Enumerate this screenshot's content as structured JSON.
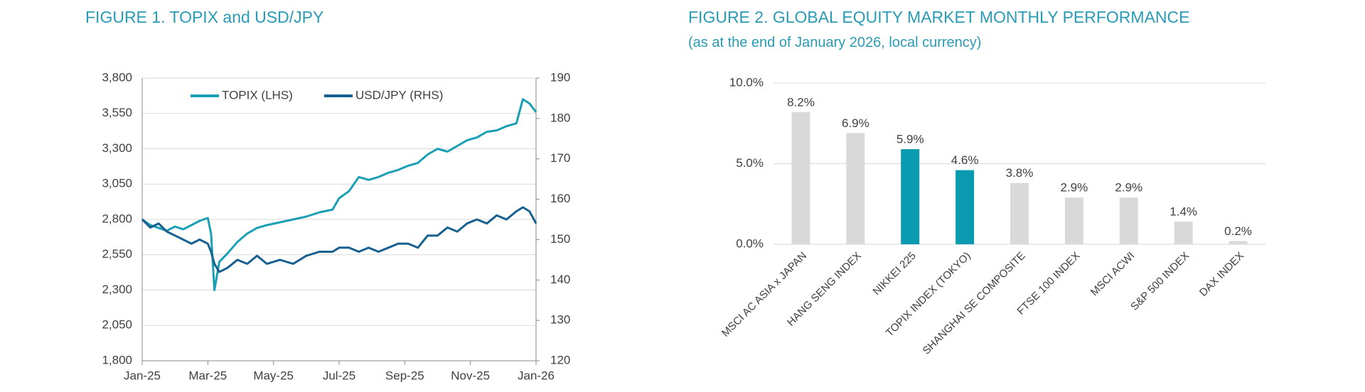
{
  "chart_data": [
    {
      "type": "line",
      "title": "FIGURE 1. TOPIX and USD/JPY",
      "x": [
        0,
        0.25,
        0.5,
        0.75,
        1,
        1.25,
        1.5,
        1.75,
        2.0,
        2.1,
        2.2,
        2.35,
        2.6,
        2.9,
        3.2,
        3.5,
        3.8,
        4.2,
        4.6,
        5,
        5.4,
        5.8,
        6.0,
        6.3,
        6.6,
        6.9,
        7.2,
        7.5,
        7.8,
        8.1,
        8.4,
        8.7,
        9.0,
        9.3,
        9.6,
        9.9,
        10.2,
        10.5,
        10.8,
        11.1,
        11.4,
        11.6,
        11.8,
        12.0
      ],
      "xlim": [
        0,
        12
      ],
      "xticks": [
        {
          "value": 0,
          "label": "Jan-25"
        },
        {
          "value": 2,
          "label": "Mar-25"
        },
        {
          "value": 4,
          "label": "May-25"
        },
        {
          "value": 6,
          "label": "Jul-25"
        },
        {
          "value": 8,
          "label": "Sep-25"
        },
        {
          "value": 10,
          "label": "Nov-25"
        },
        {
          "value": 12,
          "label": "Jan-26"
        }
      ],
      "ylim": [
        1800,
        3800
      ],
      "yticks": [
        {
          "value": 1800,
          "label": "1,800"
        },
        {
          "value": 2050,
          "label": "2,050"
        },
        {
          "value": 2300,
          "label": "2,300"
        },
        {
          "value": 2550,
          "label": "2,550"
        },
        {
          "value": 2800,
          "label": "2,800"
        },
        {
          "value": 3050,
          "label": "3,050"
        },
        {
          "value": 3300,
          "label": "3,300"
        },
        {
          "value": 3550,
          "label": "3,550"
        },
        {
          "value": 3800,
          "label": "3,800"
        }
      ],
      "y2lim": [
        120,
        190
      ],
      "y2ticks": [
        120,
        130,
        140,
        150,
        160,
        170,
        180,
        190
      ],
      "grid": true,
      "legend": "top",
      "series": [
        {
          "name": "TOPIX (LHS)",
          "color": "#1a9fb5",
          "values": [
            2800,
            2760,
            2740,
            2720,
            2750,
            2730,
            2760,
            2790,
            2810,
            2700,
            2300,
            2500,
            2560,
            2640,
            2700,
            2740,
            2760,
            2780,
            2800,
            2820,
            2850,
            2870,
            2950,
            3000,
            3100,
            3080,
            3100,
            3130,
            3150,
            3180,
            3200,
            3260,
            3300,
            3280,
            3320,
            3360,
            3380,
            3420,
            3430,
            3460,
            3480,
            3650,
            3620,
            3560
          ]
        },
        {
          "name": "USD/JPY (RHS)",
          "color": "#17608f",
          "axis": "y2",
          "values": [
            155,
            153,
            154,
            152,
            151,
            150,
            149,
            150,
            149,
            147,
            144,
            142,
            143,
            145,
            144,
            146,
            144,
            145,
            144,
            146,
            147,
            147,
            148,
            148,
            147,
            148,
            147,
            148,
            149,
            149,
            148,
            151,
            151,
            153,
            152,
            154,
            155,
            154,
            156,
            155,
            157,
            158,
            157,
            154
          ]
        }
      ]
    },
    {
      "type": "bar",
      "title": "FIGURE 2. GLOBAL EQUITY MARKET MONTHLY PERFORMANCE",
      "subtitle": "(as at the end of January 2026, local currency)",
      "categories": [
        "MSCI AC ASIA x JAPAN",
        "HANG SENG INDEX",
        "NIKKEI 225",
        "TOPIX INDEX (TOKYO)",
        "SHANGHAI SE COMPOSITE",
        "FTSE 100 INDEX",
        "MSCI ACWI",
        "S&P 500 INDEX",
        "DAX INDEX"
      ],
      "values": [
        8.2,
        6.9,
        5.9,
        4.6,
        3.8,
        2.9,
        2.9,
        1.4,
        0.2
      ],
      "value_labels": [
        "8.2%",
        "6.9%",
        "5.9%",
        "4.6%",
        "3.8%",
        "2.9%",
        "2.9%",
        "1.4%",
        "0.2%"
      ],
      "colors": [
        "#d9d9d9",
        "#d9d9d9",
        "#0a9bb0",
        "#0a9bb0",
        "#d9d9d9",
        "#d9d9d9",
        "#d9d9d9",
        "#d9d9d9",
        "#d9d9d9"
      ],
      "ylim": [
        0,
        10
      ],
      "yticks": [
        {
          "value": 0,
          "label": "0.0%"
        },
        {
          "value": 5,
          "label": "5.0%"
        },
        {
          "value": 10,
          "label": "10.0%"
        }
      ],
      "grid": true
    }
  ]
}
